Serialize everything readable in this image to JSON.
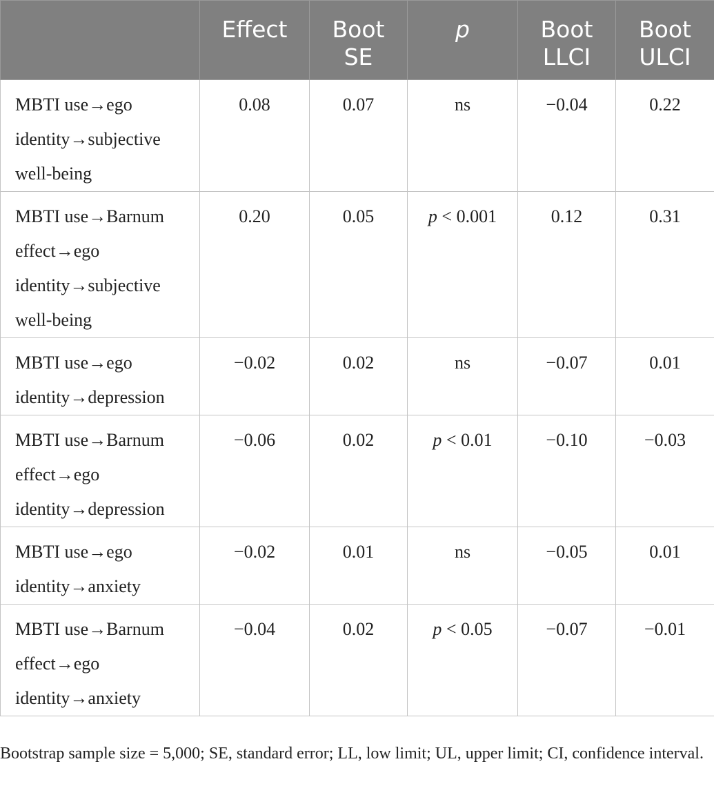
{
  "table": {
    "headers": [
      {
        "lines": [
          ""
        ],
        "italic": false
      },
      {
        "lines": [
          "Effect"
        ],
        "italic": false
      },
      {
        "lines": [
          "Boot",
          "SE"
        ],
        "italic": false
      },
      {
        "lines": [
          "p"
        ],
        "italic": true
      },
      {
        "lines": [
          "Boot",
          "LLCI"
        ],
        "italic": false
      },
      {
        "lines": [
          "Boot",
          "ULCI"
        ],
        "italic": false
      }
    ],
    "rows": [
      {
        "path_lines": [
          "MBTI use→ego",
          "identity→subjective",
          "well-being"
        ],
        "effect": "0.08",
        "se": "0.07",
        "p": {
          "italic": "",
          "text": "ns"
        },
        "llci": "−0.04",
        "ulci": "0.22"
      },
      {
        "path_lines": [
          "MBTI use→Barnum",
          "effect→ego",
          "identity→subjective",
          "well-being"
        ],
        "effect": "0.20",
        "se": "0.05",
        "p": {
          "italic": "p",
          "text": " < 0.001"
        },
        "llci": "0.12",
        "ulci": "0.31"
      },
      {
        "path_lines": [
          "MBTI use→ego",
          "identity→depression"
        ],
        "effect": "−0.02",
        "se": "0.02",
        "p": {
          "italic": "",
          "text": "ns"
        },
        "llci": "−0.07",
        "ulci": "0.01"
      },
      {
        "path_lines": [
          "MBTI use→Barnum",
          "effect→ego",
          "identity→depression"
        ],
        "effect": "−0.06",
        "se": "0.02",
        "p": {
          "italic": "p",
          "text": " < 0.01"
        },
        "llci": "−0.10",
        "ulci": "−0.03"
      },
      {
        "path_lines": [
          "MBTI use→ego",
          "identity→anxiety"
        ],
        "effect": "−0.02",
        "se": "0.01",
        "p": {
          "italic": "",
          "text": "ns"
        },
        "llci": "−0.05",
        "ulci": "0.01"
      },
      {
        "path_lines": [
          "MBTI use→Barnum",
          "effect→ego",
          "identity→anxiety"
        ],
        "effect": "−0.04",
        "se": "0.02",
        "p": {
          "italic": "p",
          "text": " < 0.05"
        },
        "llci": "−0.07",
        "ulci": "−0.01"
      }
    ]
  },
  "note": "Bootstrap sample size = 5,000; SE, standard error; LL, low limit; UL, upper limit; CI, confidence interval.",
  "colors": {
    "header_bg": "#808080",
    "header_text": "#ffffff",
    "grid": "#c4c4c4",
    "body_text": "#222222"
  }
}
